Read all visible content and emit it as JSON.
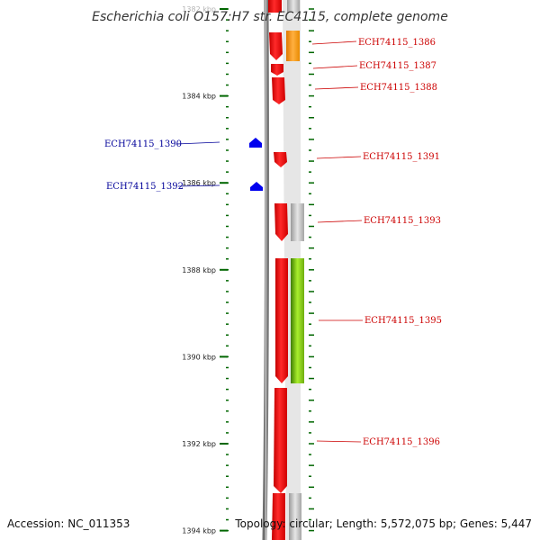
{
  "title": "Escherichia coli O157:H7 str. EC4115, complete genome",
  "footer": {
    "accession": "Accession: NC_011353",
    "summary": "Topology: circular; Length: 5,572,075 bp; Genes: 5,447"
  },
  "colors": {
    "forward_label": "#cc0000",
    "reverse_label": "#000099",
    "forward_gene": "#ff0000",
    "reverse_gene": "#0000ee",
    "tick": "#006600",
    "backbone": "#888888"
  },
  "axis": {
    "ticks": [
      {
        "label": "1382 kbp",
        "kbp": 1382
      },
      {
        "label": "1384 kbp",
        "kbp": 1384
      },
      {
        "label": "1386 kbp",
        "kbp": 1386
      },
      {
        "label": "1388 kbp",
        "kbp": 1388
      },
      {
        "label": "1390 kbp",
        "kbp": 1390
      },
      {
        "label": "1392 kbp",
        "kbp": 1392
      },
      {
        "label": "1394 kbp",
        "kbp": 1394
      }
    ]
  },
  "labels": {
    "forward": [
      "ECH74115_1386",
      "ECH74115_1387",
      "ECH74115_1388",
      "ECH74115_1391",
      "ECH74115_1393",
      "ECH74115_1395",
      "ECH74115_1396"
    ],
    "reverse": [
      "ECH74115_1390",
      "ECH74115_1392"
    ]
  }
}
